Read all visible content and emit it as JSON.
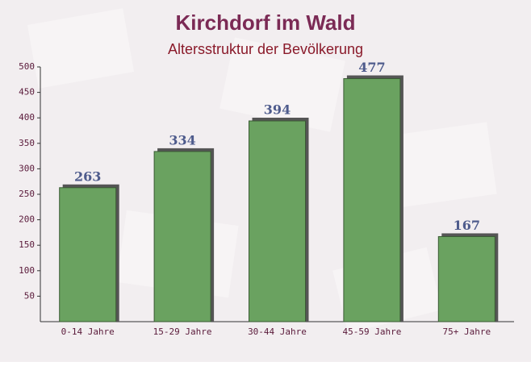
{
  "chart_data": {
    "type": "bar",
    "title": "Kirchdorf im Wald",
    "subtitle": "Altersstruktur der Bevölkerung",
    "categories": [
      "0-14 Jahre",
      "15-29 Jahre",
      "30-44 Jahre",
      "45-59 Jahre",
      "75+ Jahre"
    ],
    "values": [
      263,
      334,
      394,
      477,
      167
    ],
    "color": "#6aa260",
    "ylim": [
      0,
      500
    ],
    "yticks": [
      50,
      100,
      150,
      200,
      250,
      300,
      350,
      400,
      450,
      500
    ],
    "grid": false
  }
}
